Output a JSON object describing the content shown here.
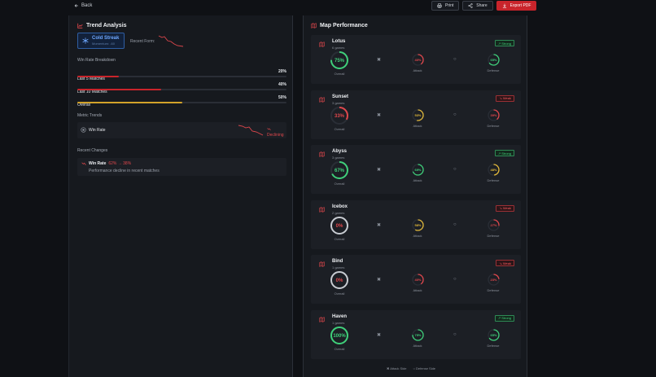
{
  "nav": {
    "back_label": "Back"
  },
  "actions": {
    "print_label": "Print",
    "share_label": "Share",
    "export_label": "Export PDF"
  },
  "colors": {
    "accent_red": "#c9242b",
    "good": "#3fd07a",
    "bad": "#e0474c",
    "warn": "#e2b93b",
    "neutral": "#c8ccd2"
  },
  "trend": {
    "title": "Trend Analysis",
    "streak": {
      "title": "Cold Streak",
      "subtitle": "Momentum: -60"
    },
    "recent_form_label": "Recent Form:",
    "breakdown_label": "Win Rate Breakdown",
    "breakdown": [
      {
        "label": "Last 5 Matches",
        "value": "20%",
        "pct": 20,
        "color": "#c9242b"
      },
      {
        "label": "Last 10 Matches",
        "value": "40%",
        "pct": 40,
        "color": "#c9242b"
      },
      {
        "label": "Overall",
        "value": "50%",
        "pct": 50,
        "color": "#d2a22a"
      }
    ],
    "metric_trends_label": "Metric Trends",
    "metric": {
      "name": "Win Rate",
      "status": "Declining"
    },
    "recent_changes_label": "Recent Changes",
    "change": {
      "name": "Win Rate",
      "delta": "62% → 38%",
      "desc": "Performance decline in recent matches"
    }
  },
  "maps": {
    "title": "Map Performance",
    "overall_label": "Overall",
    "attack_label": "Attack",
    "defense_label": "Defense",
    "items": [
      {
        "name": "Lotus",
        "games": "6 games",
        "badge": "Strong",
        "badge_type": "strong",
        "overall": "75%",
        "overall_pct": 75,
        "overall_color": "#3fd07a",
        "attack": "40%",
        "attack_pct": 40,
        "attack_color": "#e0474c",
        "defense": "65%",
        "defense_pct": 65,
        "defense_color": "#3fd07a"
      },
      {
        "name": "Sunset",
        "games": "3 games",
        "badge": "Weak",
        "badge_type": "weak",
        "overall": "33%",
        "overall_pct": 33,
        "overall_color": "#e0474c",
        "attack": "53%",
        "attack_pct": 53,
        "attack_color": "#e2b93b",
        "defense": "39%",
        "defense_pct": 39,
        "defense_color": "#e0474c"
      },
      {
        "name": "Abyss",
        "games": "3 games",
        "badge": "Strong",
        "badge_type": "strong",
        "overall": "67%",
        "overall_pct": 67,
        "overall_color": "#3fd07a",
        "attack": "69%",
        "attack_pct": 69,
        "attack_color": "#3fd07a",
        "defense": "48%",
        "defense_pct": 48,
        "defense_color": "#e2b93b"
      },
      {
        "name": "Icebox",
        "games": "2 games",
        "badge": "Weak",
        "badge_type": "weak",
        "overall": "0%",
        "overall_pct": 0,
        "overall_color": "#e0474c",
        "attack": "58%",
        "attack_pct": 58,
        "attack_color": "#e2b93b",
        "defense": "27%",
        "defense_pct": 27,
        "defense_color": "#e0474c"
      },
      {
        "name": "Bind",
        "games": "1 games",
        "badge": "Weak",
        "badge_type": "weak",
        "overall": "0%",
        "overall_pct": 0,
        "overall_color": "#e0474c",
        "attack": "40%",
        "attack_pct": 40,
        "attack_color": "#e0474c",
        "defense": "23%",
        "defense_pct": 23,
        "defense_color": "#e0474c"
      },
      {
        "name": "Haven",
        "games": "1 games",
        "badge": "Strong",
        "badge_type": "strong",
        "overall": "100%",
        "overall_pct": 100,
        "overall_color": "#3fd07a",
        "attack": "75%",
        "attack_pct": 75,
        "attack_color": "#3fd07a",
        "defense": "65%",
        "defense_pct": 65,
        "defense_color": "#3fd07a"
      }
    ],
    "legend": {
      "attack": "Attack Side",
      "defense": "Defense Side"
    }
  }
}
